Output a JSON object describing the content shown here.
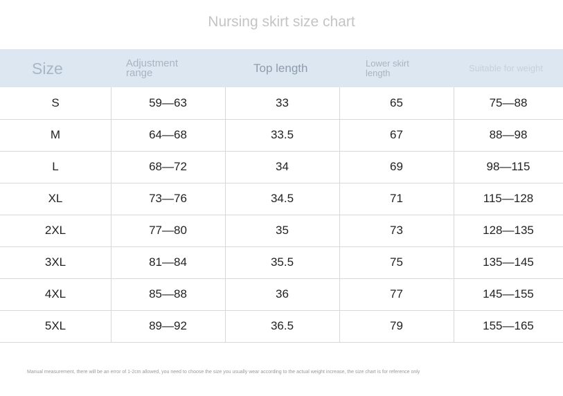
{
  "title": "Nursing skirt size chart",
  "table": {
    "header": [
      "Size",
      "Adjustment range",
      "Top length",
      "Lower skirt length",
      "Suitable for weight"
    ],
    "rows": [
      [
        "S",
        "59—63",
        "33",
        "65",
        "75—88"
      ],
      [
        "M",
        "64—68",
        "33.5",
        "67",
        "88—98"
      ],
      [
        "L",
        "68—72",
        "34",
        "69",
        "98—115"
      ],
      [
        "XL",
        "73—76",
        "34.5",
        "71",
        "115—128"
      ],
      [
        "2XL",
        "77—80",
        "35",
        "73",
        "128—135"
      ],
      [
        "3XL",
        "81—84",
        "35.5",
        "75",
        "135—145"
      ],
      [
        "4XL",
        "85—88",
        "36",
        "77",
        "145—155"
      ],
      [
        "5XL",
        "89—92",
        "36.5",
        "79",
        "155—165"
      ]
    ]
  },
  "footnote": "Manual measurement, there will be an error of 1-2cm allowed, you need to choose the size you usually wear according to the actual weight increase, the size chart is for reference only"
}
